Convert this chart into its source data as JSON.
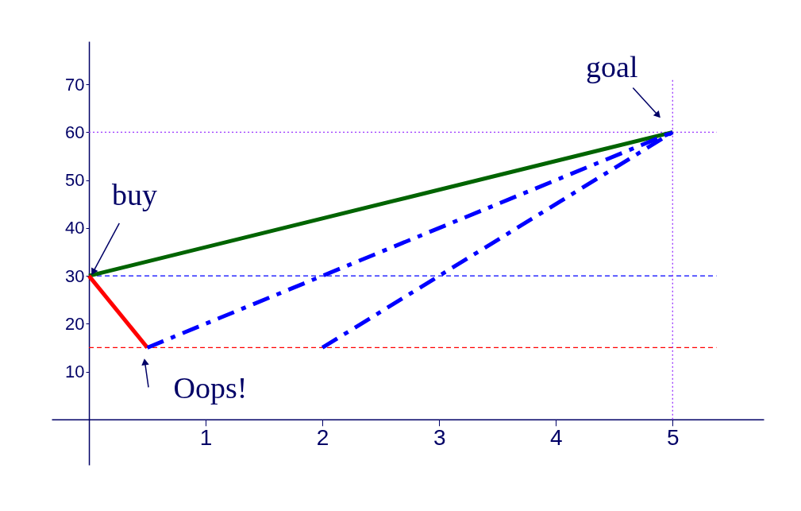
{
  "chart_data": {
    "type": "line",
    "xlim": [
      -0.32,
      5.78
    ],
    "ylim": [
      -9.5,
      79
    ],
    "xticks": [
      1,
      2,
      3,
      4,
      5
    ],
    "yticks": [
      10,
      20,
      30,
      40,
      50,
      60,
      70
    ],
    "grid": false,
    "marker": "none",
    "series": [
      {
        "color": "#006400",
        "line_style": "solid",
        "x": [
          0,
          5
        ],
        "values": [
          30,
          60
        ]
      },
      {
        "color": "#ff0000",
        "line_style": "solid",
        "x": [
          0,
          0.5
        ],
        "values": [
          30,
          15
        ]
      },
      {
        "color": "#0000ff",
        "line_style": "dashdot",
        "x": [
          0.5,
          5
        ],
        "values": [
          15,
          60
        ]
      },
      {
        "color": "#0000ff",
        "line_style": "dashdot",
        "x": [
          2,
          5
        ],
        "values": [
          15,
          60
        ]
      }
    ],
    "ref_lines": [
      {
        "axis": "y",
        "value": 60,
        "color": "#9933ff",
        "line_style": "dotted"
      },
      {
        "axis": "y",
        "value": 30,
        "color": "#0000ff",
        "line_style": "dashed"
      },
      {
        "axis": "y",
        "value": 15,
        "color": "#ff0000",
        "line_style": "dashed"
      },
      {
        "axis": "x",
        "value": 5,
        "color": "#9933ff",
        "line_style": "dotted"
      }
    ],
    "annotations": [
      {
        "text": "buy",
        "x": 0,
        "y": 30
      },
      {
        "text": "Oops!",
        "x": 0.5,
        "y": 15
      },
      {
        "text": "goal",
        "x": 5,
        "y": 60
      }
    ]
  }
}
